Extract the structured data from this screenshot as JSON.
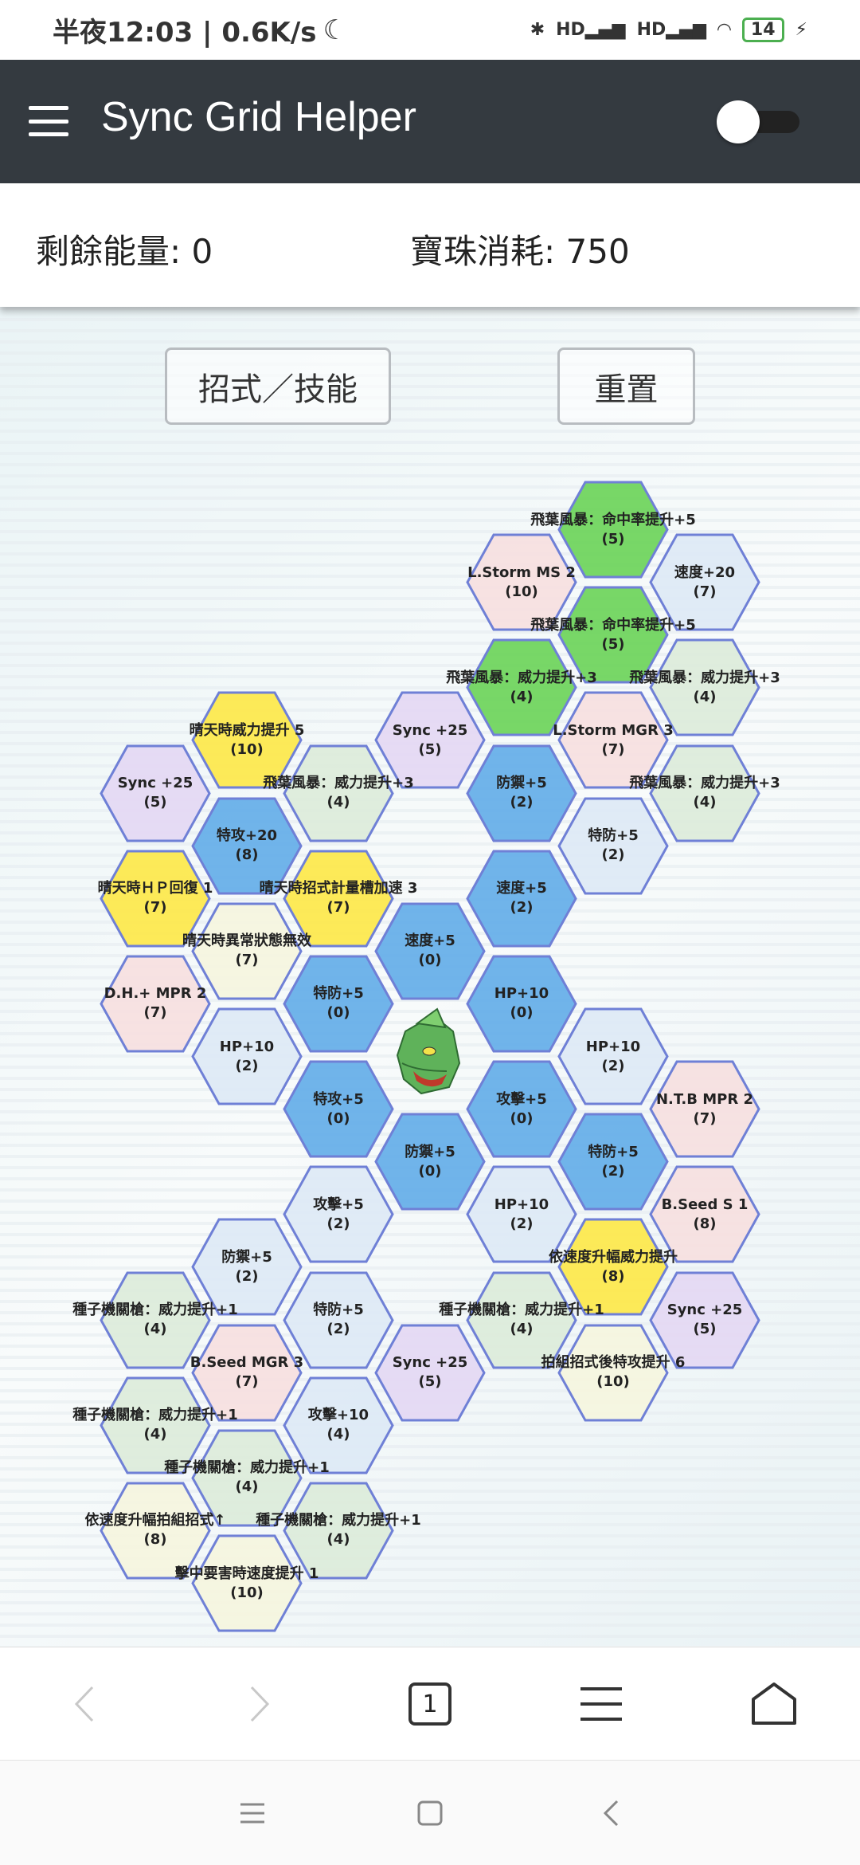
{
  "status_bar": {
    "time": "半夜12:03 | 0.6K/s",
    "battery": "14"
  },
  "app_bar": {
    "title": "Sync Grid Helper",
    "toggle_on": false
  },
  "summary": {
    "energy_label": "剩餘能量: 0",
    "orb_label": "寶珠消耗: 750"
  },
  "buttons": {
    "moves": "招式／技能",
    "reset": "重置"
  },
  "colors": {
    "green": "#6dd45a",
    "blue": "#64aee8",
    "yellow": "#fde84a",
    "pink": "#f6dfe0",
    "lightblue": "#dde9f5",
    "lightgreen": "#dcecda",
    "lightyellow": "#f5f5de",
    "purple": "#e4d8f3",
    "border": "#6f80d6",
    "appbar": "#343a40"
  },
  "nodes": [
    {
      "label": "飛葉風暴：命中率提升+5",
      "cost": "(5)",
      "type": "green"
    },
    {
      "label": "飛葉風暴：命中率提升+5",
      "cost": "(5)",
      "type": "green"
    },
    {
      "label": "L.Storm MGR 3",
      "cost": "(7)",
      "type": "pink"
    },
    {
      "label": "特防+5",
      "cost": "(2)",
      "type": "lightblue"
    },
    {
      "label": "HP+10",
      "cost": "(2)",
      "type": "lightblue"
    },
    {
      "label": "特防+5",
      "cost": "(2)",
      "type": "blue"
    },
    {
      "label": "依速度升幅威力提升",
      "cost": "(8)",
      "type": "yellow"
    },
    {
      "label": "拍組招式後特攻提升 6",
      "cost": "(10)",
      "type": "lightyellow"
    },
    {
      "label": "速度+20",
      "cost": "(7)",
      "type": "lightblue"
    },
    {
      "label": "飛葉風暴：威力提升+3",
      "cost": "(4)",
      "type": "lightgreen"
    },
    {
      "label": "飛葉風暴：威力提升+3",
      "cost": "(4)",
      "type": "lightgreen"
    },
    {
      "label": "N.T.B MPR 2",
      "cost": "(7)",
      "type": "pink"
    },
    {
      "label": "B.Seed S 1",
      "cost": "(8)",
      "type": "pink"
    },
    {
      "label": "Sync +25",
      "cost": "(5)",
      "type": "purple"
    },
    {
      "label": "L.Storm MS 2",
      "cost": "(10)",
      "type": "pink"
    },
    {
      "label": "飛葉風暴：威力提升+3",
      "cost": "(4)",
      "type": "green"
    },
    {
      "label": "防禦+5",
      "cost": "(2)",
      "type": "blue"
    },
    {
      "label": "速度+5",
      "cost": "(2)",
      "type": "blue"
    },
    {
      "label": "HP+10",
      "cost": "(0)",
      "type": "blue"
    },
    {
      "label": "攻擊+5",
      "cost": "(0)",
      "type": "blue"
    },
    {
      "label": "HP+10",
      "cost": "(2)",
      "type": "lightblue"
    },
    {
      "label": "種子機關槍：威力提升+1",
      "cost": "(4)",
      "type": "lightgreen"
    },
    {
      "label": "Sync +25",
      "cost": "(5)",
      "type": "purple"
    },
    {
      "label": "速度+5",
      "cost": "(0)",
      "type": "blue"
    },
    {
      "label": "防禦+5",
      "cost": "(0)",
      "type": "blue"
    },
    {
      "label": "Sync +25",
      "cost": "(5)",
      "type": "purple"
    },
    {
      "label": "飛葉風暴：威力提升+3",
      "cost": "(4)",
      "type": "lightgreen"
    },
    {
      "label": "晴天時招式計量槽加速 3",
      "cost": "(7)",
      "type": "yellow"
    },
    {
      "label": "特防+5",
      "cost": "(0)",
      "type": "blue"
    },
    {
      "label": "特攻+5",
      "cost": "(0)",
      "type": "blue"
    },
    {
      "label": "攻擊+5",
      "cost": "(2)",
      "type": "lightblue"
    },
    {
      "label": "特防+5",
      "cost": "(2)",
      "type": "lightblue"
    },
    {
      "label": "攻擊+10",
      "cost": "(4)",
      "type": "lightblue"
    },
    {
      "label": "種子機關槍：威力提升+1",
      "cost": "(4)",
      "type": "lightgreen"
    },
    {
      "label": "晴天時威力提升 5",
      "cost": "(10)",
      "type": "yellow"
    },
    {
      "label": "特攻+20",
      "cost": "(8)",
      "type": "blue"
    },
    {
      "label": "晴天時異常狀態無效",
      "cost": "(7)",
      "type": "lightyellow"
    },
    {
      "label": "HP+10",
      "cost": "(2)",
      "type": "lightblue"
    },
    {
      "label": "防禦+5",
      "cost": "(2)",
      "type": "lightblue"
    },
    {
      "label": "B.Seed MGR 3",
      "cost": "(7)",
      "type": "pink"
    },
    {
      "label": "種子機關槍：威力提升+1",
      "cost": "(4)",
      "type": "lightgreen"
    },
    {
      "label": "擊中要害時速度提升 1",
      "cost": "(10)",
      "type": "lightyellow"
    },
    {
      "label": "Sync +25",
      "cost": "(5)",
      "type": "purple"
    },
    {
      "label": "晴天時ＨＰ回復 1",
      "cost": "(7)",
      "type": "yellow"
    },
    {
      "label": "D.H.+ MPR 2",
      "cost": "(7)",
      "type": "pink"
    },
    {
      "label": "種子機關槍：威力提升+1",
      "cost": "(4)",
      "type": "lightgreen"
    },
    {
      "label": "種子機關槍：威力提升+1",
      "cost": "(4)",
      "type": "lightgreen"
    },
    {
      "label": "依速度升幅拍組招式↑",
      "cost": "(8)",
      "type": "lightyellow"
    }
  ],
  "bottom_nav": {
    "tab_count": "1"
  }
}
